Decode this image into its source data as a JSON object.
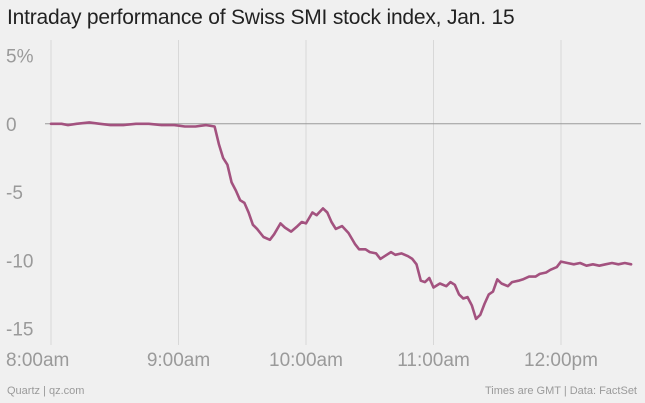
{
  "title": "Intraday performance of Swiss SMI stock index, Jan. 15",
  "footer": {
    "left": "Quartz | qz.com",
    "right": "Times are GMT | Data: FactSet"
  },
  "colors": {
    "line": "#a3527f",
    "zero_line": "#9a9a9a",
    "grid": "#d8d8d8",
    "tick_label": "#9a9a9a",
    "background": "#f0f0f0"
  },
  "chart_data": {
    "type": "line",
    "title": "Intraday performance of Swiss SMI stock index, Jan. 15",
    "xlabel": "",
    "ylabel": "",
    "ylim": [
      -15,
      5
    ],
    "xlim": [
      "08:00",
      "12:45"
    ],
    "yticks": [
      {
        "value": 5,
        "label": "5%"
      },
      {
        "value": 0,
        "label": "0"
      },
      {
        "value": -5,
        "label": "-5"
      },
      {
        "value": -10,
        "label": "-10"
      },
      {
        "value": -15,
        "label": "-15"
      }
    ],
    "xticks": [
      {
        "value": "08:00",
        "label": "8:00am"
      },
      {
        "value": "09:00",
        "label": "9:00am"
      },
      {
        "value": "10:00",
        "label": "10:00am"
      },
      {
        "value": "11:00",
        "label": "11:00am"
      },
      {
        "value": "12:00",
        "label": "12:00pm"
      }
    ],
    "grid": "vertical-light",
    "series": [
      {
        "points": [
          [
            "08:00",
            0.0
          ],
          [
            "08:05",
            0.0
          ],
          [
            "08:08",
            -0.1
          ],
          [
            "08:12",
            0.0
          ],
          [
            "08:18",
            0.1
          ],
          [
            "08:23",
            0.0
          ],
          [
            "08:28",
            -0.1
          ],
          [
            "08:34",
            -0.1
          ],
          [
            "08:40",
            0.0
          ],
          [
            "08:46",
            0.0
          ],
          [
            "08:52",
            -0.1
          ],
          [
            "08:58",
            -0.1
          ],
          [
            "09:03",
            -0.2
          ],
          [
            "09:08",
            -0.2
          ],
          [
            "09:13",
            -0.1
          ],
          [
            "09:17",
            -0.2
          ],
          [
            "09:19",
            -1.5
          ],
          [
            "09:21",
            -2.5
          ],
          [
            "09:23",
            -3.0
          ],
          [
            "09:25",
            -4.3
          ],
          [
            "09:27",
            -4.9
          ],
          [
            "09:29",
            -5.6
          ],
          [
            "09:31",
            -5.8
          ],
          [
            "09:33",
            -6.5
          ],
          [
            "09:35",
            -7.4
          ],
          [
            "09:37",
            -7.7
          ],
          [
            "09:40",
            -8.3
          ],
          [
            "09:43",
            -8.5
          ],
          [
            "09:45",
            -8.1
          ],
          [
            "09:48",
            -7.3
          ],
          [
            "09:50",
            -7.6
          ],
          [
            "09:53",
            -7.9
          ],
          [
            "09:56",
            -7.5
          ],
          [
            "09:58",
            -7.2
          ],
          [
            "10:00",
            -7.3
          ],
          [
            "10:03",
            -6.5
          ],
          [
            "10:05",
            -6.7
          ],
          [
            "10:08",
            -6.2
          ],
          [
            "10:10",
            -6.5
          ],
          [
            "10:12",
            -7.2
          ],
          [
            "10:14",
            -7.7
          ],
          [
            "10:17",
            -7.5
          ],
          [
            "10:20",
            -8.0
          ],
          [
            "10:23",
            -8.8
          ],
          [
            "10:25",
            -9.2
          ],
          [
            "10:28",
            -9.2
          ],
          [
            "10:30",
            -9.4
          ],
          [
            "10:33",
            -9.5
          ],
          [
            "10:35",
            -9.9
          ],
          [
            "10:37",
            -9.7
          ],
          [
            "10:40",
            -9.4
          ],
          [
            "10:42",
            -9.6
          ],
          [
            "10:45",
            -9.5
          ],
          [
            "10:48",
            -9.7
          ],
          [
            "10:50",
            -9.9
          ],
          [
            "10:52",
            -10.3
          ],
          [
            "10:54",
            -11.5
          ],
          [
            "10:56",
            -11.6
          ],
          [
            "10:58",
            -11.3
          ],
          [
            "11:00",
            -12.0
          ],
          [
            "11:03",
            -11.7
          ],
          [
            "11:06",
            -11.9
          ],
          [
            "11:08",
            -11.6
          ],
          [
            "11:10",
            -11.8
          ],
          [
            "11:12",
            -12.5
          ],
          [
            "11:14",
            -12.8
          ],
          [
            "11:16",
            -12.7
          ],
          [
            "11:18",
            -13.3
          ],
          [
            "11:20",
            -14.3
          ],
          [
            "11:22",
            -14.0
          ],
          [
            "11:24",
            -13.2
          ],
          [
            "11:26",
            -12.5
          ],
          [
            "11:28",
            -12.3
          ],
          [
            "11:30",
            -11.4
          ],
          [
            "11:32",
            -11.7
          ],
          [
            "11:35",
            -11.9
          ],
          [
            "11:37",
            -11.6
          ],
          [
            "11:40",
            -11.5
          ],
          [
            "11:42",
            -11.4
          ],
          [
            "11:45",
            -11.2
          ],
          [
            "11:48",
            -11.2
          ],
          [
            "11:50",
            -11.0
          ],
          [
            "11:53",
            -10.9
          ],
          [
            "11:55",
            -10.7
          ],
          [
            "11:58",
            -10.5
          ],
          [
            "12:00",
            -10.1
          ],
          [
            "12:03",
            -10.2
          ],
          [
            "12:06",
            -10.3
          ],
          [
            "12:09",
            -10.2
          ],
          [
            "12:12",
            -10.4
          ],
          [
            "12:15",
            -10.3
          ],
          [
            "12:18",
            -10.4
          ],
          [
            "12:21",
            -10.3
          ],
          [
            "12:24",
            -10.2
          ],
          [
            "12:27",
            -10.3
          ],
          [
            "12:30",
            -10.2
          ],
          [
            "12:33",
            -10.3
          ]
        ]
      }
    ]
  }
}
